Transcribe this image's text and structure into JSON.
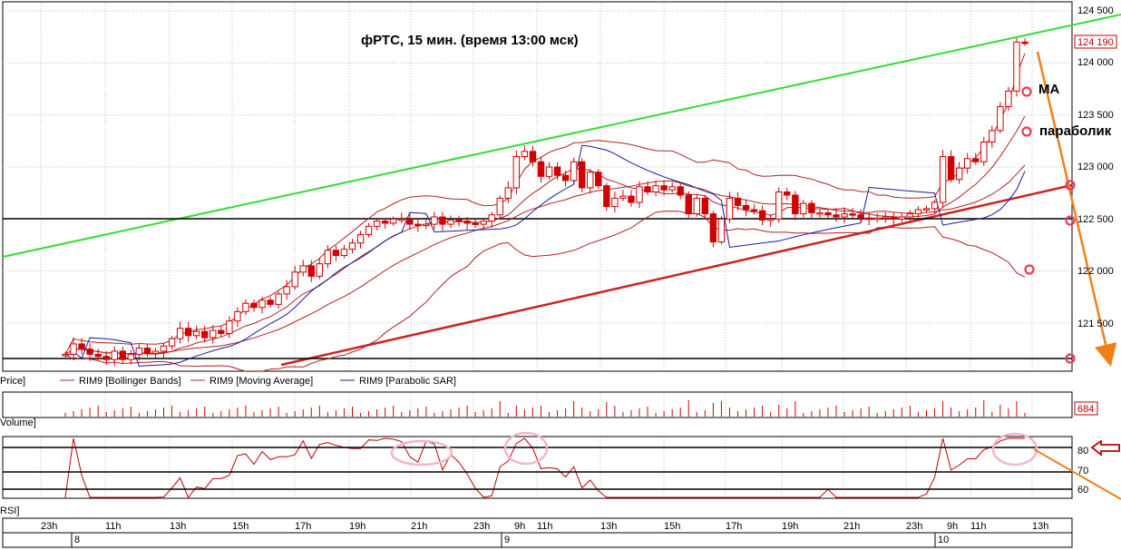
{
  "chart_data": {
    "type": "candlestick",
    "title": "фРТС,  15 мин.   (время 13:00 мск)",
    "price_axis": {
      "ticks": [
        "124 500",
        "124 000",
        "123 500",
        "123 000",
        "122 500",
        "122 000",
        "121 500"
      ],
      "tick_values": [
        124500,
        124000,
        123500,
        123000,
        122500,
        122000,
        121500
      ],
      "ylim": [
        121200,
        124550
      ]
    },
    "last_price": "124 190",
    "volume_last": "684",
    "rsi_ticks": [
      "80",
      "70",
      "60"
    ],
    "time_ticks": [
      "23h",
      "11h",
      "13h",
      "15h",
      "17h",
      "19h",
      "21h",
      "23h",
      "9h",
      "11h",
      "13h",
      "15h",
      "17h",
      "19h",
      "21h",
      "23h",
      "9h",
      "11h",
      "13h"
    ],
    "date_labels": [
      "8",
      "9",
      "10"
    ],
    "annotations": [
      "MA",
      "параболик"
    ],
    "legend": {
      "price": "Price]",
      "bollinger": "RIM9 [Bollinger Bands]",
      "ma": "RIM9 [Moving Average]",
      "sar": "RIM9 [Parabolic SAR]",
      "volume": "Volume]",
      "rsi": "RSI]"
    },
    "levels": [
      122500,
      121200
    ],
    "colors": {
      "candle": "#d00000",
      "bollinger": "#b22222",
      "ma": "#b22222",
      "sar": "#1a1aa0",
      "upper_trend": "#33dd33",
      "lower_trend": "#cc2222",
      "arrow": "#f07f1a",
      "circle": "#e43d5a",
      "rsi_circle": "#f2b6c8"
    },
    "candles": {
      "start": 121200,
      "closes": [
        121200,
        121300,
        121250,
        121200,
        121180,
        121150,
        121230,
        121150,
        121200,
        121260,
        121210,
        121230,
        121280,
        121350,
        121450,
        121380,
        121420,
        121360,
        121430,
        121400,
        121520,
        121610,
        121690,
        121650,
        121720,
        121680,
        121780,
        121850,
        121990,
        122050,
        121950,
        122070,
        122200,
        122150,
        122210,
        122270,
        122350,
        122430,
        122480,
        122460,
        122500,
        122500,
        122450,
        122440,
        122450,
        122520,
        122450,
        122490,
        122480,
        122460,
        122450,
        122480,
        122540,
        122700,
        122800,
        123100,
        123150,
        123050,
        122910,
        123000,
        122920,
        122870,
        123050,
        122800,
        122950,
        122820,
        122620,
        122700,
        122720,
        122660,
        122810,
        122760,
        122820,
        122780,
        122810,
        122730,
        122550,
        122700,
        122550,
        122280,
        122500,
        122700,
        122630,
        122590,
        122580,
        122490,
        122500,
        122760,
        122730,
        122550,
        122650,
        122560,
        122560,
        122540,
        122520,
        122550,
        122540,
        122510,
        122500,
        122510,
        122520,
        122500,
        122520,
        122550,
        122590,
        122600,
        122660,
        123100,
        122880,
        122990,
        123080,
        123050,
        123240,
        123350,
        123580,
        123730,
        124200,
        124190
      ]
    }
  }
}
